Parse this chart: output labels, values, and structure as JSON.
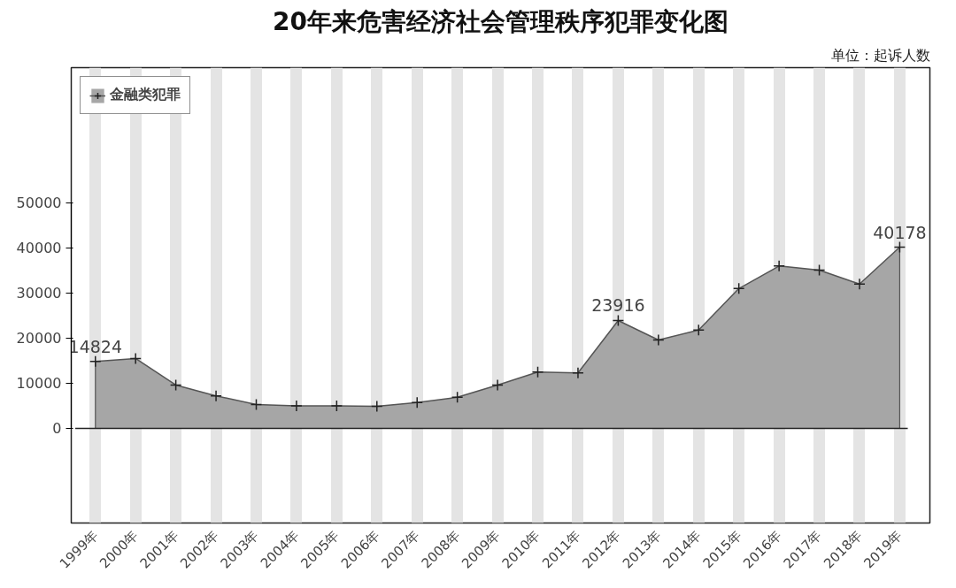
{
  "chart_data": {
    "type": "area",
    "title": "20年来危害经济社会管理秩序犯罪变化图",
    "annotations": [
      "单位：起诉人数"
    ],
    "categories": [
      "1999年",
      "2000年",
      "2001年",
      "2002年",
      "2003年",
      "2004年",
      "2005年",
      "2006年",
      "2007年",
      "2008年",
      "2009年",
      "2010年",
      "2011年",
      "2012年",
      "2013年",
      "2014年",
      "2015年",
      "2016年",
      "2017年",
      "2018年",
      "2019年"
    ],
    "series": [
      {
        "name": "金融类犯罪",
        "color": "#a6a6a6",
        "values": [
          14824,
          15500,
          9600,
          7200,
          5300,
          5000,
          5000,
          4900,
          5700,
          6900,
          9600,
          12500,
          12300,
          23916,
          19600,
          21800,
          31000,
          36000,
          35100,
          32000,
          40178
        ],
        "value_labels": [
          "14824",
          null,
          null,
          null,
          null,
          null,
          null,
          null,
          null,
          null,
          null,
          null,
          null,
          "23916",
          null,
          null,
          null,
          null,
          null,
          null,
          "40178"
        ]
      }
    ],
    "ylim": [
      -21000,
      80000
    ],
    "yticks": [
      0,
      10000,
      20000,
      30000,
      40000,
      50000
    ],
    "grid": "x",
    "legend": "top left",
    "marker": "cross",
    "line_style": "solid"
  }
}
